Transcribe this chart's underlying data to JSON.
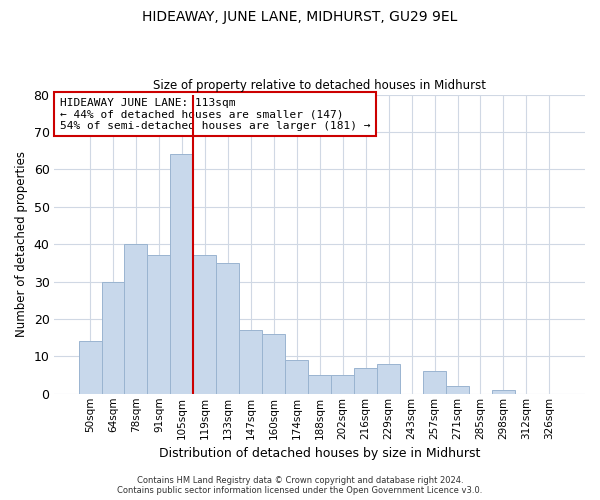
{
  "title": "HIDEAWAY, JUNE LANE, MIDHURST, GU29 9EL",
  "subtitle": "Size of property relative to detached houses in Midhurst",
  "xlabel": "Distribution of detached houses by size in Midhurst",
  "ylabel": "Number of detached properties",
  "bin_labels": [
    "50sqm",
    "64sqm",
    "78sqm",
    "91sqm",
    "105sqm",
    "119sqm",
    "133sqm",
    "147sqm",
    "160sqm",
    "174sqm",
    "188sqm",
    "202sqm",
    "216sqm",
    "229sqm",
    "243sqm",
    "257sqm",
    "271sqm",
    "285sqm",
    "298sqm",
    "312sqm",
    "326sqm"
  ],
  "bar_heights": [
    14,
    30,
    40,
    37,
    64,
    37,
    35,
    17,
    16,
    9,
    5,
    5,
    7,
    8,
    0,
    6,
    2,
    0,
    1,
    0,
    0
  ],
  "bar_color": "#c8d8eb",
  "bar_edgecolor": "#9ab4d0",
  "grid_color": "#d0d8e4",
  "ylim": [
    0,
    80
  ],
  "yticks": [
    0,
    10,
    20,
    30,
    40,
    50,
    60,
    70,
    80
  ],
  "vline_x": 4.5,
  "annotation_text": "HIDEAWAY JUNE LANE: 113sqm\n← 44% of detached houses are smaller (147)\n54% of semi-detached houses are larger (181) →",
  "annotation_box_edgecolor": "#cc0000",
  "vline_color": "#cc0000",
  "footer_line1": "Contains HM Land Registry data © Crown copyright and database right 2024.",
  "footer_line2": "Contains public sector information licensed under the Open Government Licence v3.0.",
  "background_color": "#ffffff",
  "fig_width": 6.0,
  "fig_height": 5.0
}
